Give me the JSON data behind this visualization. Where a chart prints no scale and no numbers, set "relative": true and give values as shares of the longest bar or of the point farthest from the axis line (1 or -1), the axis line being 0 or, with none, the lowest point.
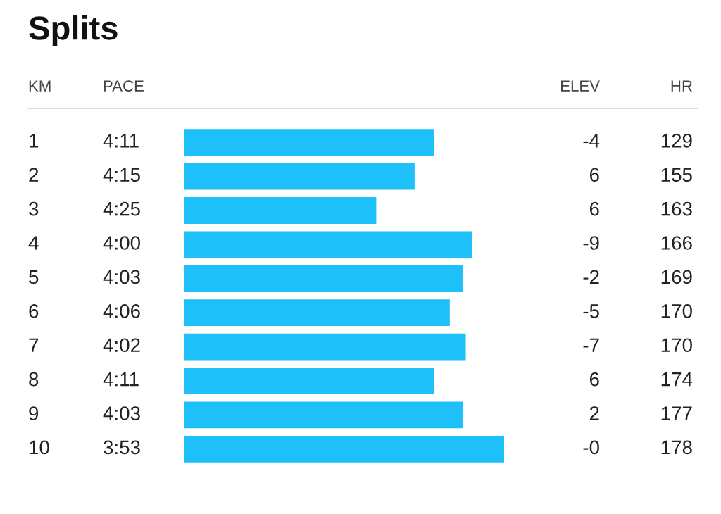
{
  "chart_data": {
    "type": "bar",
    "orientation": "horizontal",
    "relative": true,
    "title": "Splits",
    "ylabel": "KM",
    "categories": [
      "1",
      "2",
      "3",
      "4",
      "5",
      "6",
      "7",
      "8",
      "9",
      "10"
    ],
    "values": [
      0.78,
      0.72,
      0.6,
      0.9,
      0.87,
      0.83,
      0.88,
      0.78,
      0.87,
      1
    ],
    "color": "#1ec0fa",
    "annotations": [
      "PACE",
      "ELEV",
      "HR",
      "4:11",
      "-4",
      "129",
      "4:15",
      "6",
      "155",
      "4:25",
      "6",
      "163",
      "4:00",
      "-9",
      "166",
      "4:03",
      "-2",
      "169",
      "4:06",
      "-5",
      "170",
      "4:02",
      "-7",
      "170",
      "4:11",
      "6",
      "174",
      "4:03",
      "2",
      "177",
      "3:53",
      "-0",
      "178"
    ]
  }
}
